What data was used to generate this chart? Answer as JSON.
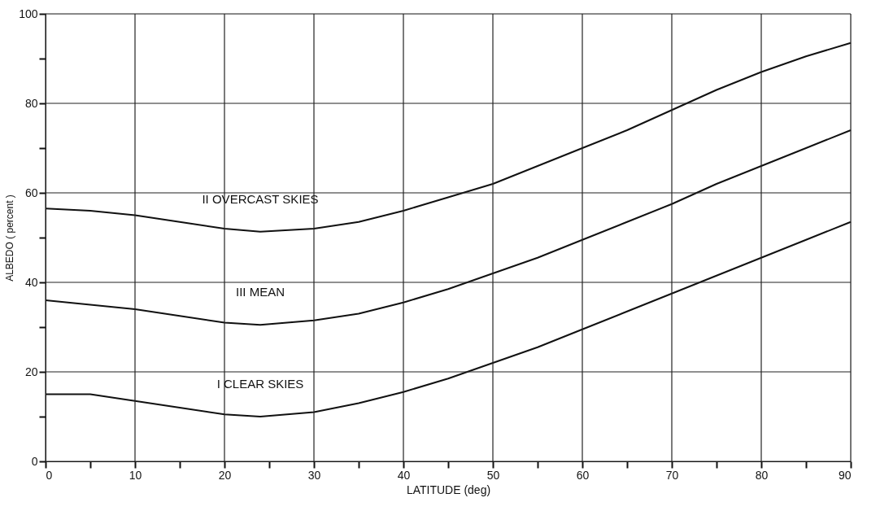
{
  "chart_data": {
    "type": "line",
    "xlabel": "LATITUDE (deg)",
    "ylabel": "ALBEDO ( percent )",
    "x": [
      0,
      5,
      10,
      15,
      20,
      24,
      30,
      35,
      40,
      45,
      50,
      55,
      60,
      65,
      70,
      75,
      80,
      85,
      90
    ],
    "series": [
      {
        "name": "II OVERCAST SKIES",
        "color": "#111111",
        "values": [
          56.5,
          56,
          55,
          53.5,
          52,
          51.3,
          52,
          53.5,
          56,
          59,
          62,
          66,
          70,
          74,
          78.5,
          83,
          87,
          90.5,
          93.5
        ]
      },
      {
        "name": "III MEAN",
        "color": "#111111",
        "values": [
          36,
          35,
          34,
          32.5,
          31,
          30.5,
          31.5,
          33,
          35.5,
          38.5,
          42,
          45.5,
          49.5,
          53.5,
          57.5,
          62,
          66,
          70,
          74
        ]
      },
      {
        "name": "I CLEAR SKIES",
        "color": "#111111",
        "values": [
          15,
          15,
          13.5,
          12,
          10.5,
          10,
          11,
          13,
          15.5,
          18.5,
          22,
          25.5,
          29.5,
          33.5,
          37.5,
          41.5,
          45.5,
          49.5,
          53.5
        ]
      }
    ],
    "xlim": [
      0,
      90
    ],
    "ylim": [
      0,
      100
    ],
    "xticks": [
      0,
      {
        "value": 5,
        "label": null
      },
      10,
      {
        "value": 15,
        "label": null
      },
      20,
      {
        "value": 25,
        "label": null
      },
      30,
      {
        "value": 35,
        "label": null
      },
      40,
      {
        "value": 45,
        "label": null
      },
      50,
      {
        "value": 55,
        "label": null
      },
      60,
      {
        "value": 65,
        "label": null
      },
      70,
      {
        "value": 75,
        "label": null
      },
      80,
      {
        "value": 85,
        "label": null
      },
      90
    ],
    "yticks": [
      0,
      {
        "value": 10,
        "label": null
      },
      20,
      {
        "value": 30,
        "label": null
      },
      40,
      {
        "value": 50,
        "label": null
      },
      60,
      {
        "value": 70,
        "label": null
      },
      80,
      {
        "value": 90,
        "label": null
      },
      100
    ],
    "grid": true,
    "legend": false,
    "marker": "none",
    "line_style": "solid"
  }
}
